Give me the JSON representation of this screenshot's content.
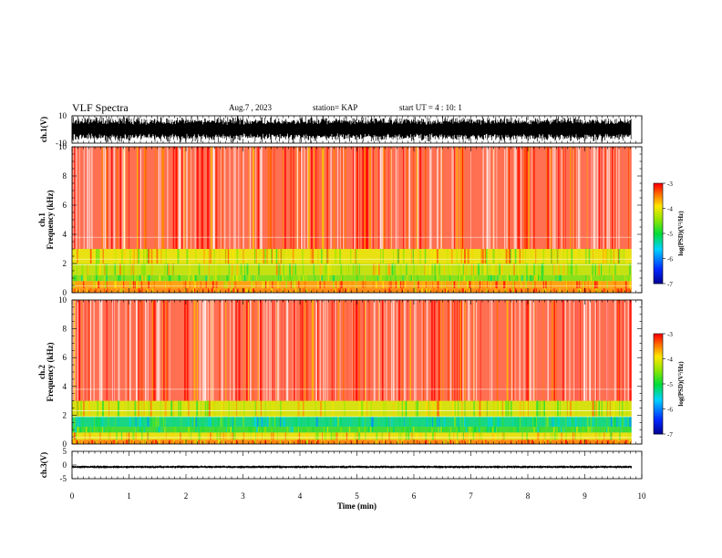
{
  "header": {
    "title": "VLF Spectra",
    "date": "Aug.7 , 2023",
    "station": "station= KAP",
    "start_ut": "start UT = 4 : 10: 1"
  },
  "colors": {
    "background": "#ffffff",
    "spectrogram_base": "#ff0000",
    "waveform": "#000000"
  },
  "chart_data": [
    {
      "type": "line",
      "panel": "ch1-waveform",
      "ylabel": "ch.1(V)",
      "ylim": [
        -10,
        10
      ],
      "yticks": [
        "10",
        "-10"
      ],
      "xlim": [
        0,
        10
      ],
      "x_extent": [
        0,
        9.82
      ],
      "description_values": {
        "envelope_min": -10,
        "envelope_max": 10
      }
    },
    {
      "type": "heatmap",
      "panel": "ch1-spectrogram",
      "ylabel": "ch.1\nFrequency (kHz)",
      "ylabel_top": "ch.1",
      "ylabel_bottom": "Frequency (kHz)",
      "ylim": [
        0,
        10
      ],
      "yticks": [
        "0",
        "2",
        "4",
        "6",
        "8",
        "10"
      ],
      "xlim": [
        0,
        10
      ],
      "x_extent": [
        0,
        9.82
      ],
      "colorbar": {
        "label": "log(PSD)(V²/Hz)",
        "min": -7,
        "max": -3,
        "ticks": [
          "-3",
          "-4",
          "-5",
          "-6",
          "-7"
        ]
      },
      "bands": [
        {
          "f_low": 0.0,
          "f_high": 0.3,
          "level": -3.5
        },
        {
          "f_low": 0.3,
          "f_high": 0.8,
          "level": -3.6
        },
        {
          "f_low": 0.8,
          "f_high": 1.2,
          "level": -4.5
        },
        {
          "f_low": 1.2,
          "f_high": 2.0,
          "level": -4.2
        },
        {
          "f_low": 2.0,
          "f_high": 3.0,
          "level": -4.0
        },
        {
          "f_low": 3.0,
          "f_high": 10.0,
          "level": -3.2
        }
      ]
    },
    {
      "type": "heatmap",
      "panel": "ch2-spectrogram",
      "ylabel": "ch.2\nFrequency (kHz)",
      "ylabel_top": "ch.2",
      "ylabel_bottom": "Frequency (kHz)",
      "ylim": [
        0,
        10
      ],
      "yticks": [
        "0",
        "2",
        "4",
        "6",
        "8",
        "10"
      ],
      "xlim": [
        0,
        10
      ],
      "x_extent": [
        0,
        9.82
      ],
      "colorbar": {
        "label": "log(PSD)(V²/Hz)",
        "min": -7,
        "max": -3,
        "ticks": [
          "-3",
          "-4",
          "-5",
          "-6",
          "-7"
        ]
      },
      "bands": [
        {
          "f_low": 0.0,
          "f_high": 0.3,
          "level": -3.5
        },
        {
          "f_low": 0.3,
          "f_high": 0.8,
          "level": -4.0
        },
        {
          "f_low": 0.8,
          "f_high": 1.2,
          "level": -4.8
        },
        {
          "f_low": 1.2,
          "f_high": 1.9,
          "level": -5.2
        },
        {
          "f_low": 1.9,
          "f_high": 3.0,
          "level": -4.1
        },
        {
          "f_low": 3.0,
          "f_high": 10.0,
          "level": -3.2
        }
      ]
    },
    {
      "type": "line",
      "panel": "ch3-waveform",
      "ylabel": "ch.3(V)",
      "ylim": [
        -5,
        5
      ],
      "yticks": [
        "5",
        "0",
        "-5"
      ],
      "xlim": [
        0,
        10
      ],
      "x_extent": [
        0,
        9.82
      ],
      "description_values": {
        "envelope_min": -1.2,
        "envelope_max": -0.2
      },
      "xlabel": "Time (min)",
      "xticks": [
        "0",
        "1",
        "2",
        "3",
        "4",
        "5",
        "6",
        "7",
        "8",
        "9",
        "10"
      ]
    }
  ]
}
